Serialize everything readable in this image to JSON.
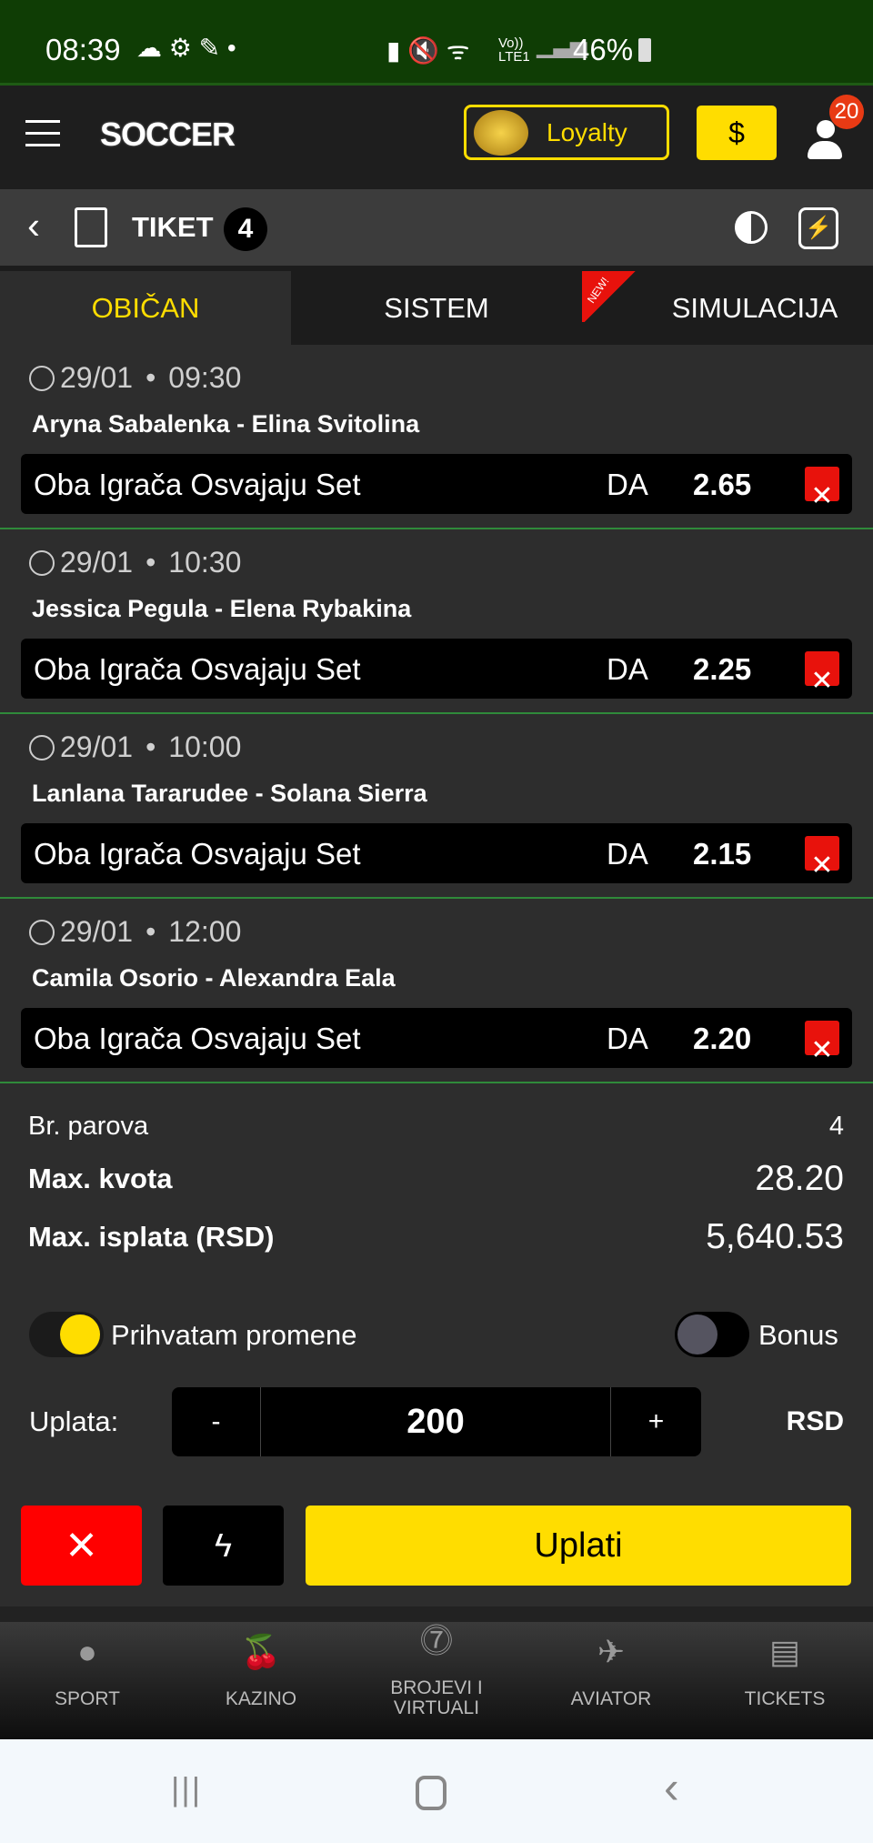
{
  "status": {
    "time": "08:39",
    "network": "Vo)) LTE1",
    "battery": "46%"
  },
  "header": {
    "logo": "SOCCER",
    "loyalty": "Loyalty",
    "notifications": "20"
  },
  "ticket": {
    "title": "TIKET",
    "count": "4"
  },
  "tabs": [
    {
      "label": "OBIČAN",
      "active": true
    },
    {
      "label": "SISTEM"
    },
    {
      "label": "SIMULACIJA",
      "badge": "NEW!"
    }
  ],
  "bets": [
    {
      "date": "29/01",
      "time": "09:30",
      "match": "Aryna Sabalenka - Elina Svitolina",
      "market": "Oba Igrača Osvajaju Set",
      "pick": "DA",
      "odd": "2.65"
    },
    {
      "date": "29/01",
      "time": "10:30",
      "match": "Jessica Pegula - Elena Rybakina",
      "market": "Oba Igrača Osvajaju Set",
      "pick": "DA",
      "odd": "2.25"
    },
    {
      "date": "29/01",
      "time": "10:00",
      "match": "Lanlana Tararudee - Solana Sierra",
      "market": "Oba Igrača Osvajaju Set",
      "pick": "DA",
      "odd": "2.15"
    },
    {
      "date": "29/01",
      "time": "12:00",
      "match": "Camila Osorio - Alexandra Eala",
      "market": "Oba Igrača Osvajaju Set",
      "pick": "DA",
      "odd": "2.20"
    }
  ],
  "summary": {
    "pairs_label": "Br. parova",
    "pairs": "4",
    "max_odd_label": "Max. kvota",
    "max_odd": "28.20",
    "max_payout_label": "Max. isplata (RSD)",
    "max_payout": "5,640.53"
  },
  "options": {
    "accept_label": "Prihvatam promene",
    "accept_on": true,
    "bonus_label": "Bonus",
    "bonus_on": false
  },
  "stake": {
    "label": "Uplata:",
    "minus": "-",
    "value": "200",
    "plus": "+",
    "currency": "RSD"
  },
  "actions": {
    "submit": "Uplati"
  },
  "nav": [
    {
      "label": "SPORT"
    },
    {
      "label": "KAZINO"
    },
    {
      "label": "BROJEVI I VIRTUALI"
    },
    {
      "label": "AVIATOR"
    },
    {
      "label": "TICKETS"
    }
  ],
  "colors": {
    "accent": "#ffdd00",
    "remove": "#e8120c",
    "divider": "#2f8a3a",
    "statusbar": "#0f3d05"
  }
}
